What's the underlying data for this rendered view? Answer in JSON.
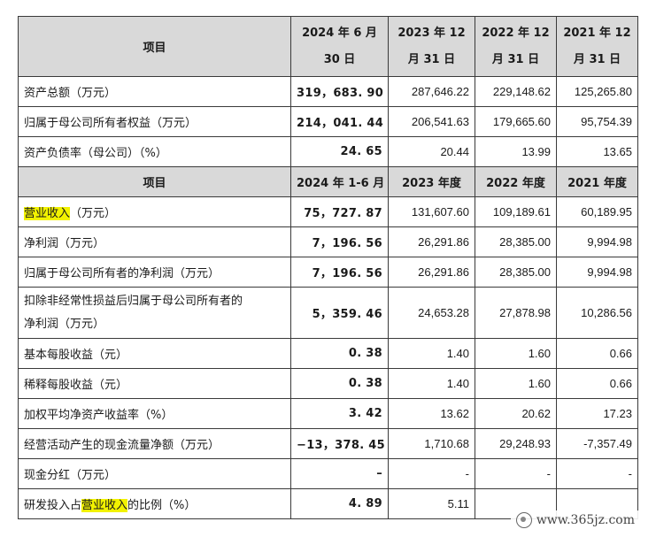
{
  "header1": {
    "item": "项目",
    "col1_line1": "2024 年 6 月",
    "col1_line2": "30 日",
    "col2_line1": "2023 年 12",
    "col2_line2": "月 31 日",
    "col3_line1": "2022 年 12",
    "col3_line2": "月 31 日",
    "col4_line1": "2021 年 12",
    "col4_line2": "月 31 日"
  },
  "section1_rows": [
    {
      "label": "资产总额（万元）",
      "v1": "319，683. 90",
      "v2": "287,646.22",
      "v3": "229,148.62",
      "v4": "125,265.80"
    },
    {
      "label": "归属于母公司所有者权益（万元）",
      "v1": "214，041. 44",
      "v2": "206,541.63",
      "v3": "179,665.60",
      "v4": "95,754.39"
    },
    {
      "label": "资产负债率（母公司）（%）",
      "v1": "24. 65",
      "v2": "20.44",
      "v3": "13.99",
      "v4": "13.65"
    }
  ],
  "header2": {
    "item": "项目",
    "col1": "2024 年 1-6 月",
    "col2": "2023 年度",
    "col3": "2022 年度",
    "col4": "2021 年度"
  },
  "section2_rows": [
    {
      "label_hl": "营业收入",
      "label_rest": "（万元）",
      "v1": "75，727. 87",
      "v2": "131,607.60",
      "v3": "109,189.61",
      "v4": "60,189.95"
    },
    {
      "label": "净利润（万元）",
      "v1": "7，196. 56",
      "v2": "26,291.86",
      "v3": "28,385.00",
      "v4": "9,994.98"
    },
    {
      "label": "归属于母公司所有者的净利润（万元）",
      "v1": "7，196. 56",
      "v2": "26,291.86",
      "v3": "28,385.00",
      "v4": "9,994.98"
    },
    {
      "label_line1": "扣除非经常性损益后归属于母公司所有者的",
      "label_line2": "净利润（万元）",
      "v1": "5，359. 46",
      "v2": "24,653.28",
      "v3": "27,878.98",
      "v4": "10,286.56"
    },
    {
      "label": "基本每股收益（元）",
      "v1": "0. 38",
      "v2": "1.40",
      "v3": "1.60",
      "v4": "0.66"
    },
    {
      "label": "稀释每股收益（元）",
      "v1": "0. 38",
      "v2": "1.40",
      "v3": "1.60",
      "v4": "0.66"
    },
    {
      "label": "加权平均净资产收益率（%）",
      "v1": "3. 42",
      "v2": "13.62",
      "v3": "20.62",
      "v4": "17.23"
    },
    {
      "label": "经营活动产生的现金流量净额（万元）",
      "v1": "−13，378. 45",
      "v2": "1,710.68",
      "v3": "29,248.93",
      "v4": "-7,357.49"
    },
    {
      "label": "现金分红（万元）",
      "v1": "–",
      "v2": "-",
      "v3": "-",
      "v4": "-"
    },
    {
      "label_pre": "研发投入占",
      "label_hl": "营业收入",
      "label_post": "的比例（%）",
      "v1": "4. 89",
      "v2": "5.11",
      "v3": "",
      "v4": ""
    }
  ],
  "watermark": {
    "text": "www.365jz.com"
  },
  "colors": {
    "header_bg": "#d9d9d9",
    "highlight": "#f2f200",
    "border": "#3a3a3a"
  }
}
